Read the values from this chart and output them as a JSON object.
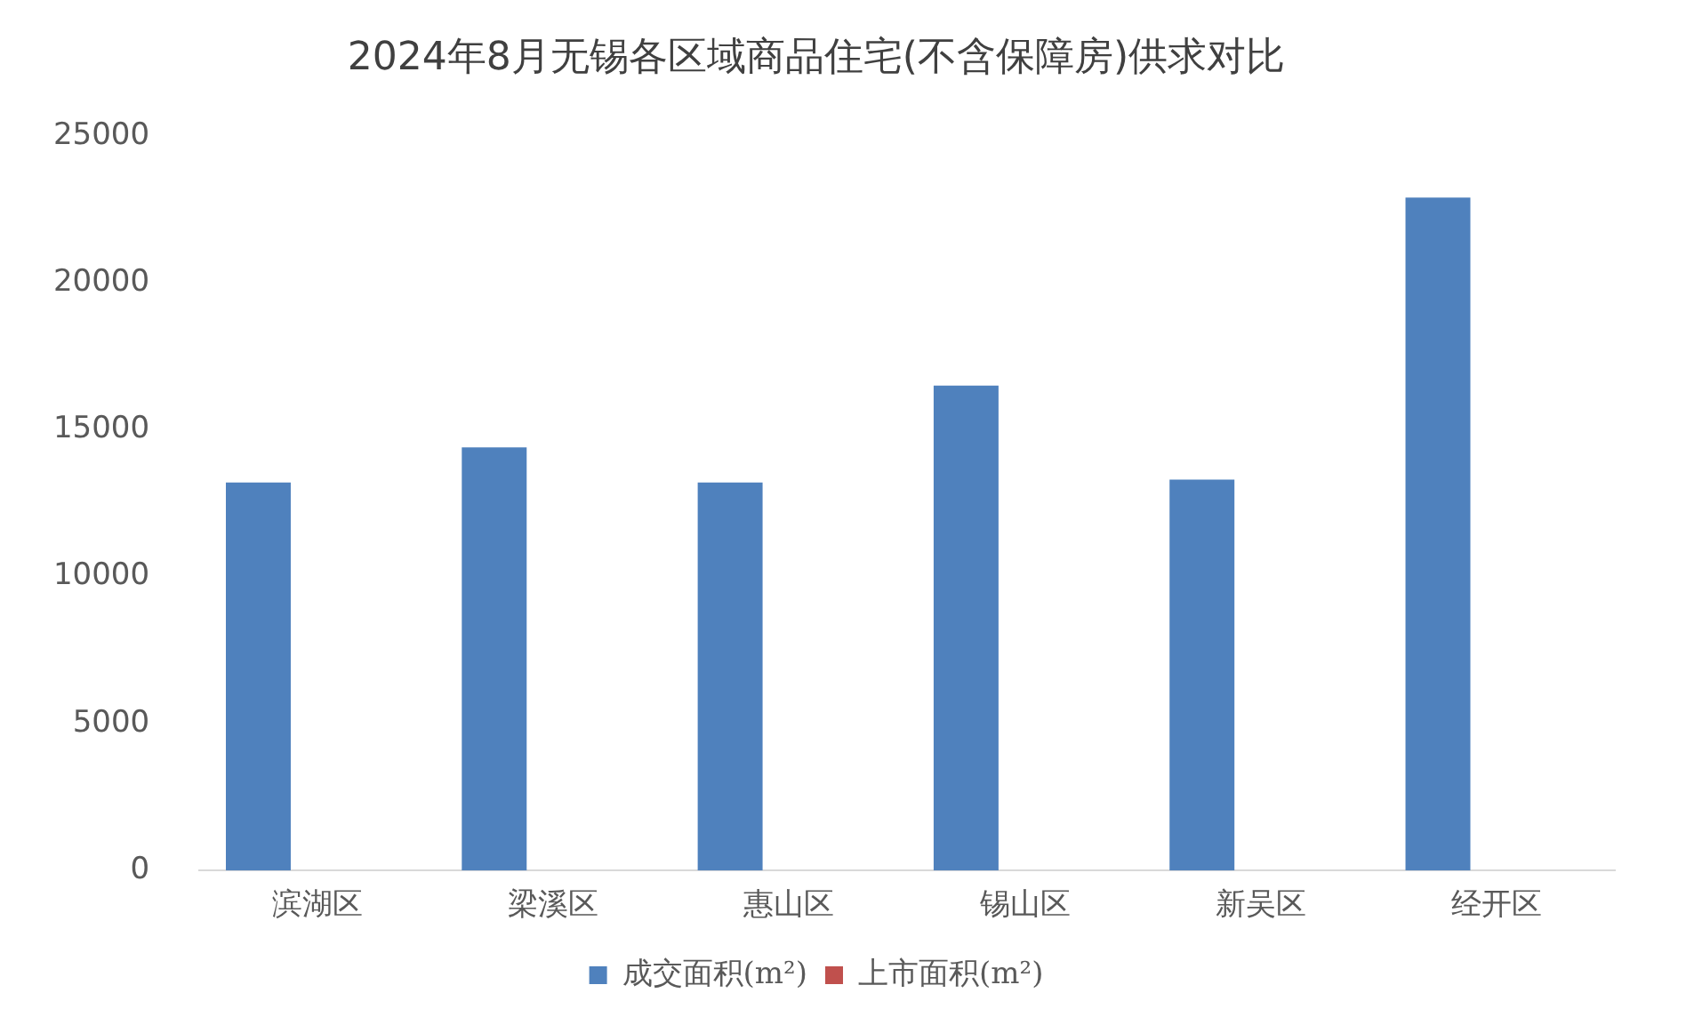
{
  "chart_data": {
    "type": "bar",
    "title": "2024年8月无锡各区域商品住宅(不含保障房)供求对比",
    "categories": [
      "滨湖区",
      "梁溪区",
      "惠山区",
      "锡山区",
      "新吴区",
      "经开区"
    ],
    "series": [
      {
        "name": "成交面积(m²)",
        "color": "#4f81bd",
        "values": [
          13200,
          14400,
          13200,
          16500,
          13300,
          22900
        ]
      },
      {
        "name": "上市面积(m²)",
        "color": "#c0504d",
        "values": [
          0,
          0,
          0,
          0,
          0,
          0
        ]
      }
    ],
    "ylim": [
      0,
      25000
    ],
    "yticks": [
      0,
      5000,
      10000,
      15000,
      20000,
      25000
    ],
    "grid": false,
    "legend": "bottom"
  }
}
